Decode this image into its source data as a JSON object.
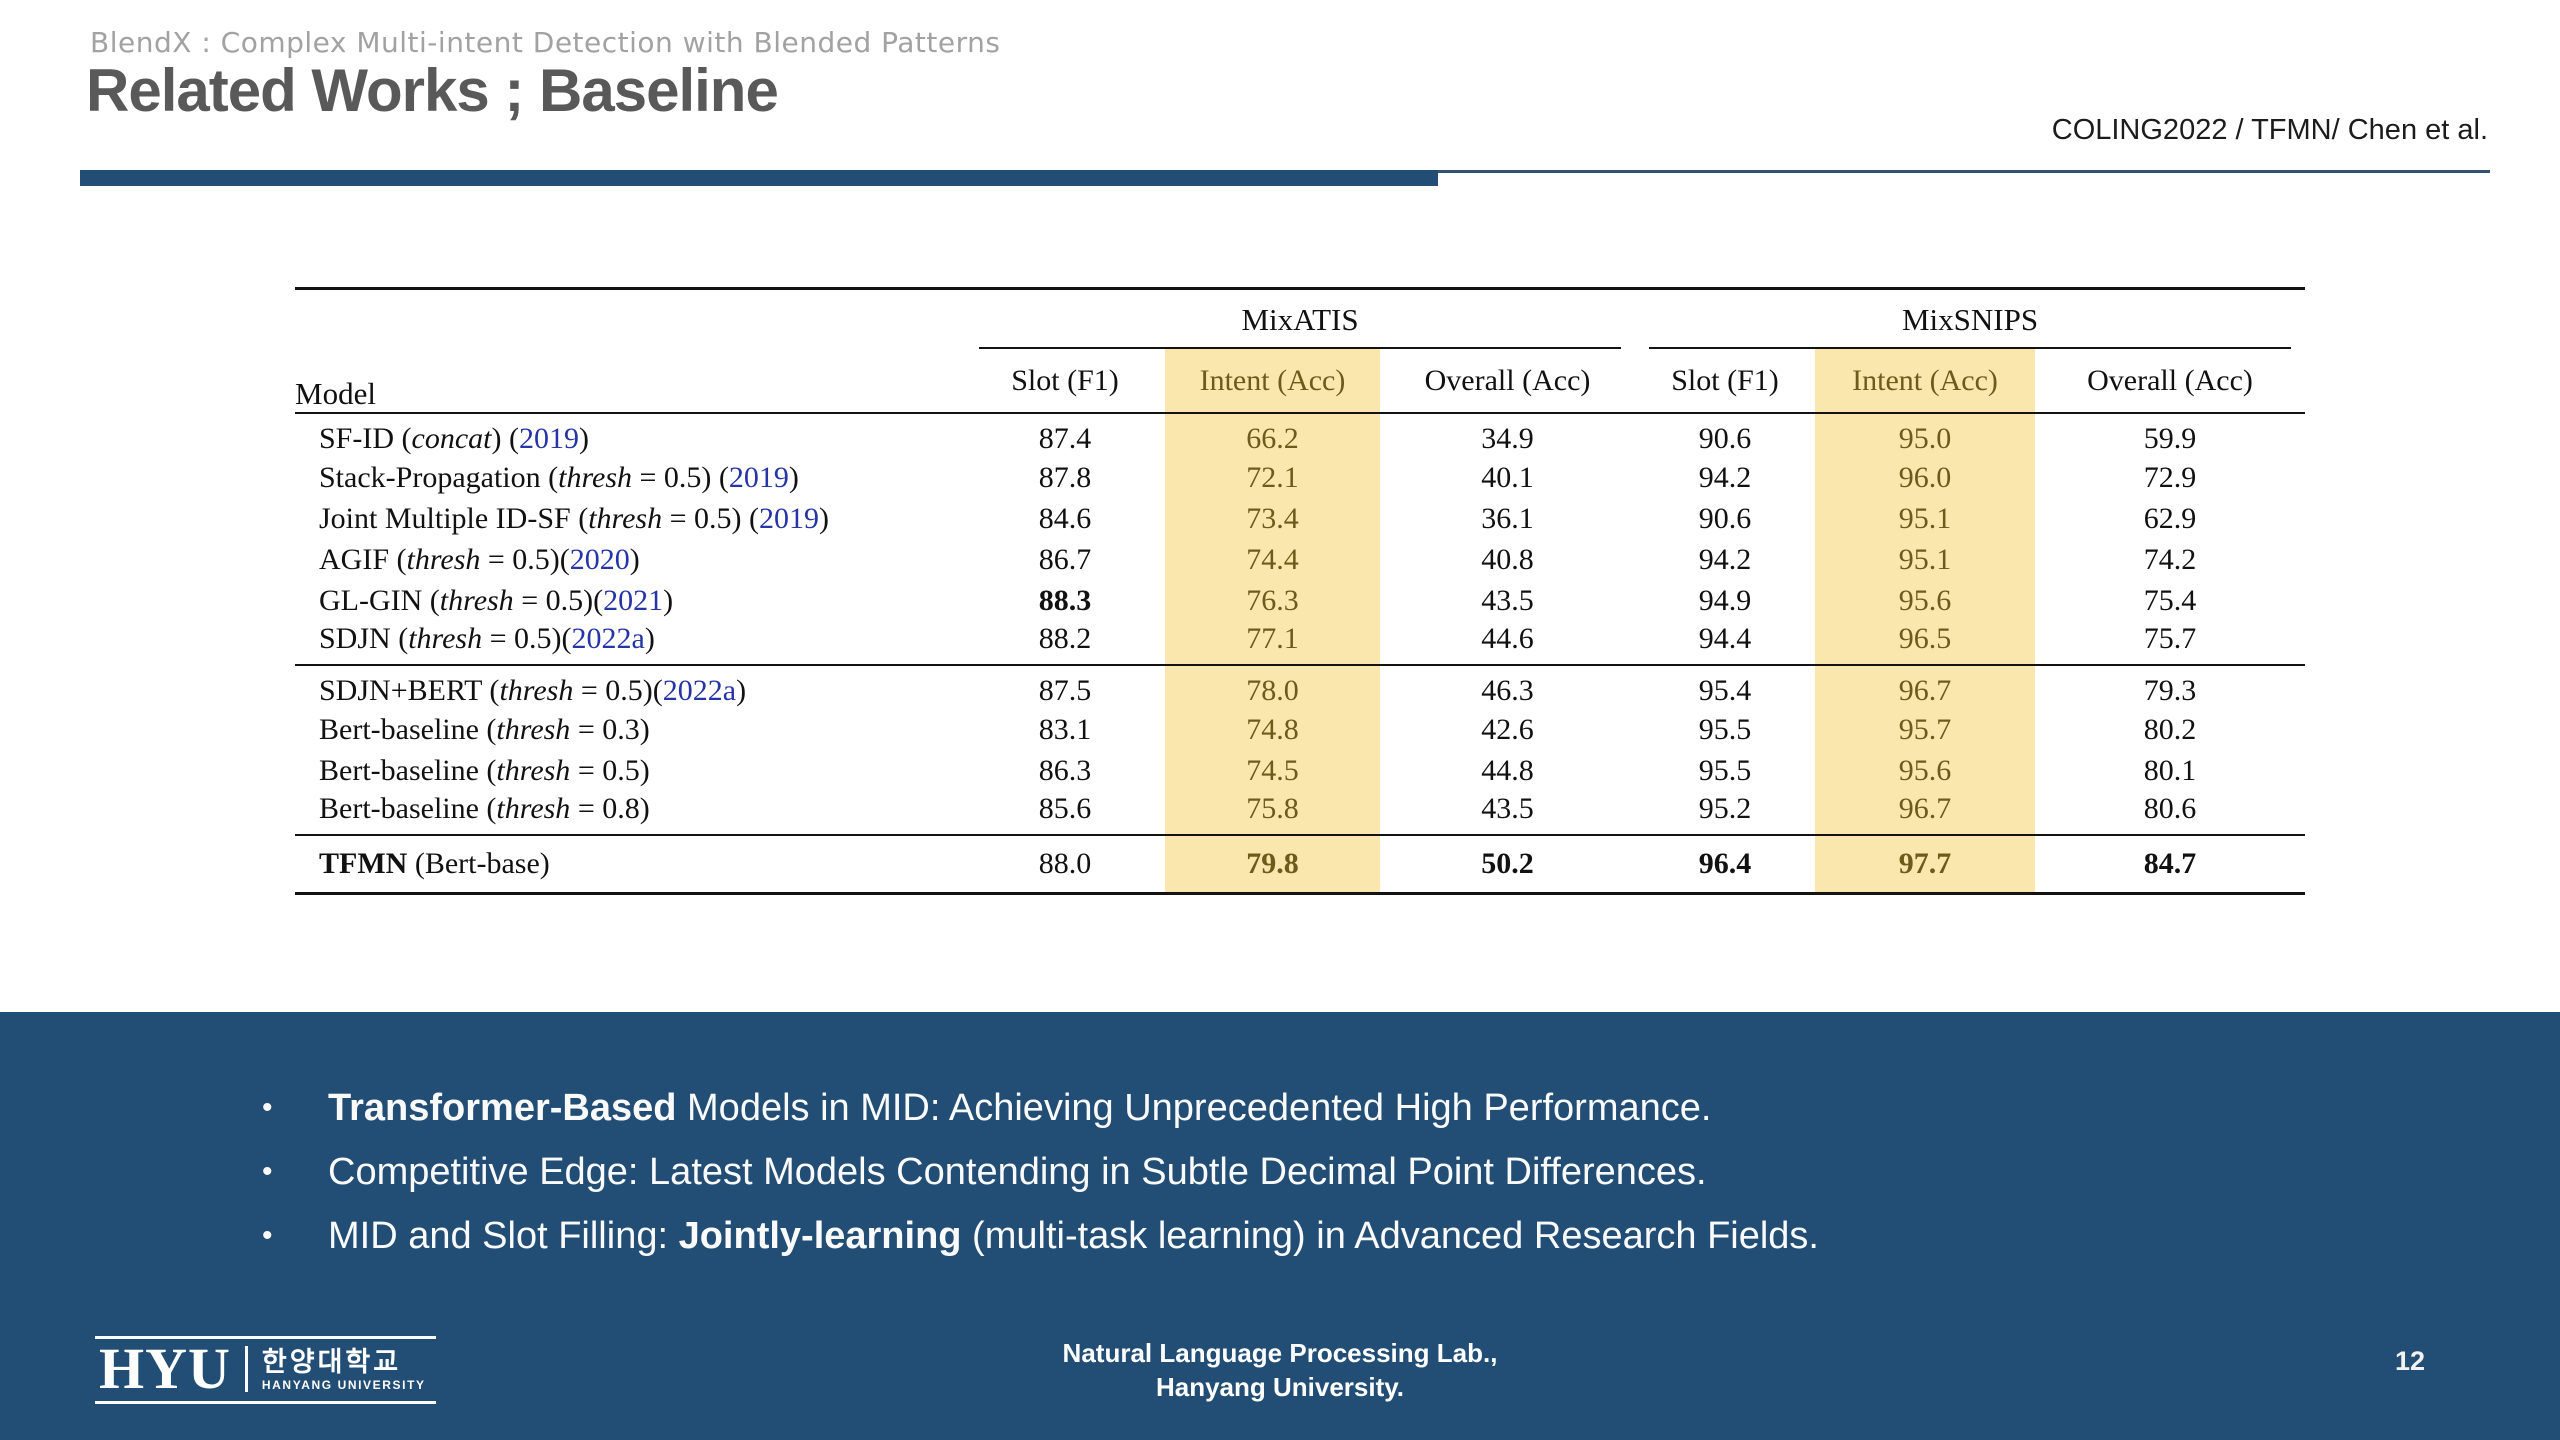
{
  "colors": {
    "brand": "#224E76",
    "highlight": "#FAE7AE",
    "olive": "#6B5C1B",
    "year": "#2534A6"
  },
  "slide": {
    "eyebrow": "BlendX : Complex Multi-intent Detection with Blended Patterns",
    "title": "Related Works ; Baseline",
    "reference": "COLING2022 / TFMN/ Chen et al.",
    "page_number": "12",
    "footer": {
      "line1": "Natural Language Processing Lab.,",
      "line2": "Hanyang University."
    },
    "logo": {
      "acronym": "HYU",
      "korean": "한양대학교",
      "english": "HANYANG UNIVERSITY"
    },
    "bullet_marker": "•"
  },
  "table": {
    "model_header": "Model",
    "col_groups": [
      {
        "label": "MixATIS"
      },
      {
        "label": "MixSNIPS"
      }
    ],
    "sub_headers": [
      "Slot (F1)",
      "Intent (Acc)",
      "Overall (Acc)",
      "Slot (F1)",
      "Intent (Acc)",
      "Overall (Acc)"
    ],
    "groups": [
      [
        {
          "model": [
            {
              "t": "SF-ID ("
            },
            {
              "t": "concat",
              "style": "italic"
            },
            {
              "t": ") ("
            },
            {
              "t": "2019",
              "style": "year"
            },
            {
              "t": ")"
            }
          ],
          "values": [
            "87.4",
            "66.2",
            "34.9",
            "90.6",
            "95.0",
            "59.9"
          ],
          "bold": [
            false,
            false,
            false,
            false,
            false,
            false
          ]
        },
        {
          "model": [
            {
              "t": "Stack-Propagation ("
            },
            {
              "t": "thresh",
              "style": "italic"
            },
            {
              "t": " = 0.5) ("
            },
            {
              "t": "2019",
              "style": "year"
            },
            {
              "t": ")"
            }
          ],
          "values": [
            "87.8",
            "72.1",
            "40.1",
            "94.2",
            "96.0",
            "72.9"
          ],
          "bold": [
            false,
            false,
            false,
            false,
            false,
            false
          ]
        },
        {
          "model": [
            {
              "t": "Joint Multiple ID-SF ("
            },
            {
              "t": "thresh",
              "style": "italic"
            },
            {
              "t": " = 0.5) ("
            },
            {
              "t": "2019",
              "style": "year"
            },
            {
              "t": ")"
            }
          ],
          "values": [
            "84.6",
            "73.4",
            "36.1",
            "90.6",
            "95.1",
            "62.9"
          ],
          "bold": [
            false,
            false,
            false,
            false,
            false,
            false
          ]
        },
        {
          "model": [
            {
              "t": "AGIF ("
            },
            {
              "t": "thresh",
              "style": "italic"
            },
            {
              "t": " = 0.5)("
            },
            {
              "t": "2020",
              "style": "year"
            },
            {
              "t": ")"
            }
          ],
          "values": [
            "86.7",
            "74.4",
            "40.8",
            "94.2",
            "95.1",
            "74.2"
          ],
          "bold": [
            false,
            false,
            false,
            false,
            false,
            false
          ]
        },
        {
          "model": [
            {
              "t": "GL-GIN ("
            },
            {
              "t": "thresh",
              "style": "italic"
            },
            {
              "t": " = 0.5)("
            },
            {
              "t": "2021",
              "style": "year"
            },
            {
              "t": ")"
            }
          ],
          "values": [
            "88.3",
            "76.3",
            "43.5",
            "94.9",
            "95.6",
            "75.4"
          ],
          "bold": [
            true,
            false,
            false,
            false,
            false,
            false
          ]
        },
        {
          "model": [
            {
              "t": "SDJN ("
            },
            {
              "t": "thresh",
              "style": "italic"
            },
            {
              "t": " = 0.5)("
            },
            {
              "t": "2022a",
              "style": "year"
            },
            {
              "t": ")"
            }
          ],
          "values": [
            "88.2",
            "77.1",
            "44.6",
            "94.4",
            "96.5",
            "75.7"
          ],
          "bold": [
            false,
            false,
            false,
            false,
            false,
            false
          ]
        }
      ],
      [
        {
          "model": [
            {
              "t": "SDJN+BERT ("
            },
            {
              "t": "thresh",
              "style": "italic"
            },
            {
              "t": " = 0.5)("
            },
            {
              "t": "2022a",
              "style": "year"
            },
            {
              "t": ")"
            }
          ],
          "values": [
            "87.5",
            "78.0",
            "46.3",
            "95.4",
            "96.7",
            "79.3"
          ],
          "bold": [
            false,
            false,
            false,
            false,
            false,
            false
          ]
        },
        {
          "model": [
            {
              "t": "Bert-baseline ("
            },
            {
              "t": "thresh",
              "style": "italic"
            },
            {
              "t": " = 0.3)"
            }
          ],
          "values": [
            "83.1",
            "74.8",
            "42.6",
            "95.5",
            "95.7",
            "80.2"
          ],
          "bold": [
            false,
            false,
            false,
            false,
            false,
            false
          ]
        },
        {
          "model": [
            {
              "t": "Bert-baseline ("
            },
            {
              "t": "thresh",
              "style": "italic"
            },
            {
              "t": " = 0.5)"
            }
          ],
          "values": [
            "86.3",
            "74.5",
            "44.8",
            "95.5",
            "95.6",
            "80.1"
          ],
          "bold": [
            false,
            false,
            false,
            false,
            false,
            false
          ]
        },
        {
          "model": [
            {
              "t": "Bert-baseline ("
            },
            {
              "t": "thresh",
              "style": "italic"
            },
            {
              "t": " = 0.8)"
            }
          ],
          "values": [
            "85.6",
            "75.8",
            "43.5",
            "95.2",
            "96.7",
            "80.6"
          ],
          "bold": [
            false,
            false,
            false,
            false,
            false,
            false
          ]
        }
      ],
      [
        {
          "model": [
            {
              "t": "TFMN",
              "style": "bold"
            },
            {
              "t": " (Bert-base)"
            }
          ],
          "values": [
            "88.0",
            "79.8",
            "50.2",
            "96.4",
            "97.7",
            "84.7"
          ],
          "bold": [
            false,
            true,
            true,
            true,
            true,
            true
          ]
        }
      ]
    ]
  },
  "bullets": [
    [
      {
        "t": "Transformer-Based",
        "style": "bold"
      },
      {
        "t": " Models in MID: Achieving Unprecedented High Performance."
      }
    ],
    [
      {
        "t": "Competitive Edge: Latest Models Contending in Subtle Decimal Point Differences."
      }
    ],
    [
      {
        "t": "MID and Slot Filling: "
      },
      {
        "t": "Jointly-learning",
        "style": "bold"
      },
      {
        "t": " (multi-task learning) in Advanced Research Fields."
      }
    ]
  ]
}
